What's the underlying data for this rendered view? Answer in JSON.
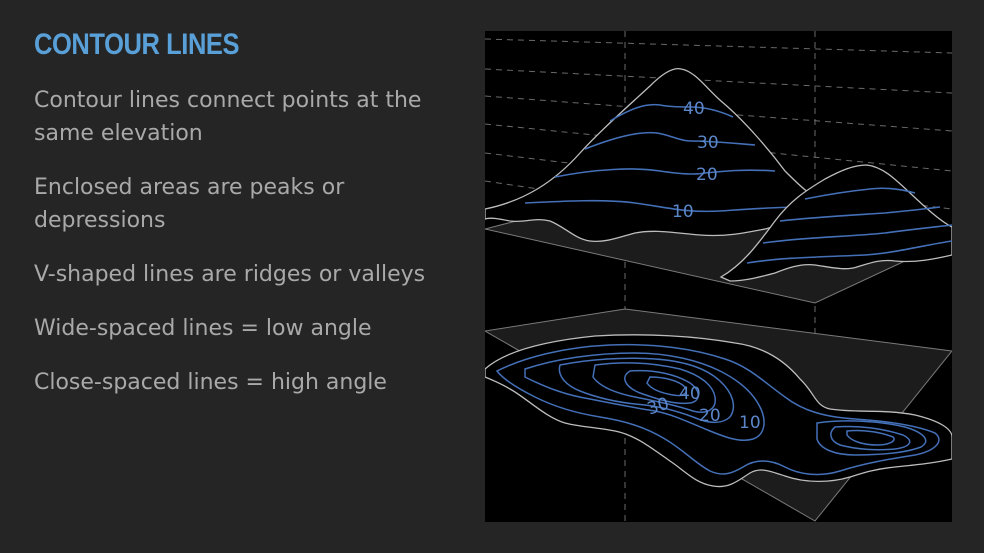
{
  "slide": {
    "title": "CONTOUR LINES",
    "bullets": [
      "Contour lines connect points at the same elevation",
      "Enclosed areas are peaks or depressions",
      "V-shaped lines are ridges or valleys",
      "Wide-spaced lines = low angle",
      "Close-spaced lines = high angle"
    ]
  },
  "diagram": {
    "profile_labels": [
      "40",
      "30",
      "20",
      "10"
    ],
    "map_labels": [
      "40",
      "30",
      "20",
      "10"
    ],
    "colors": {
      "contour": "#4470b8",
      "label": "#5b86c8",
      "outline": "#bdbdbd",
      "plane": "#1c1c1c"
    }
  }
}
